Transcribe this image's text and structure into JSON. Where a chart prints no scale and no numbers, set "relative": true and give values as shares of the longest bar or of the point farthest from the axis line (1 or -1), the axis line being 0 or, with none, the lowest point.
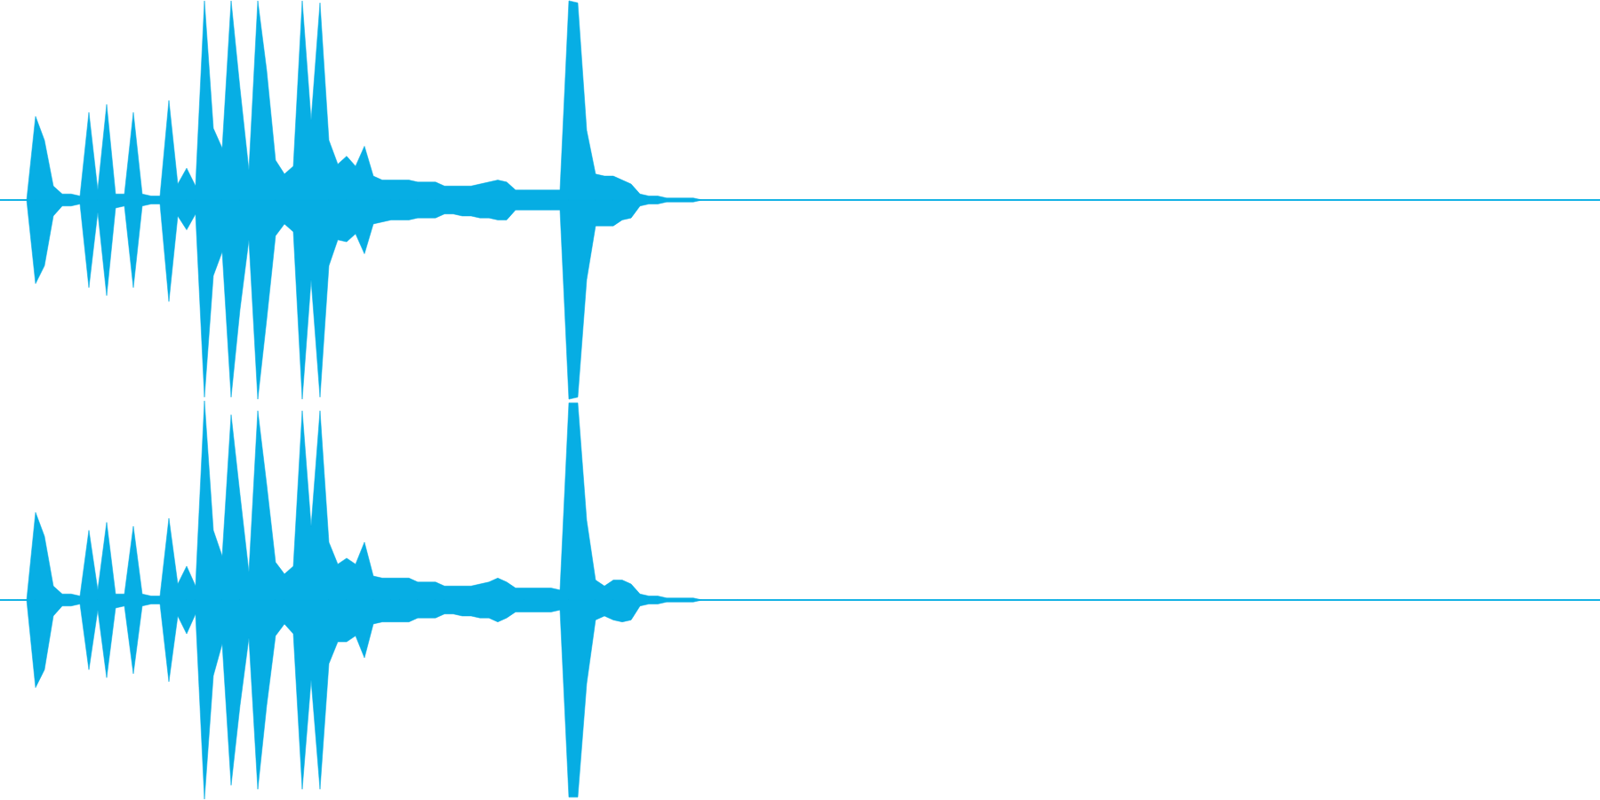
{
  "chart_data": [
    {
      "type": "area",
      "relative": true,
      "categories": [
        null,
        null,
        null,
        null,
        null,
        null,
        null,
        null,
        null,
        null,
        null,
        null,
        null,
        null,
        null,
        null,
        null,
        null,
        null,
        null,
        null,
        null,
        null,
        null,
        null,
        null,
        null,
        null,
        null,
        null,
        null,
        null,
        null,
        null,
        null,
        null,
        null,
        null,
        null,
        null,
        null,
        null,
        null,
        null,
        null,
        null,
        null,
        null,
        null,
        null,
        null,
        null,
        null,
        null,
        null,
        null,
        null,
        null,
        null,
        null,
        null,
        null,
        null,
        null,
        null,
        null,
        null,
        null,
        null,
        null,
        null,
        null,
        null,
        null,
        null,
        null,
        null,
        null,
        null,
        null,
        null,
        null,
        null,
        null,
        null,
        null,
        null,
        null,
        null,
        null,
        null,
        null,
        null,
        null,
        null,
        null,
        null,
        null,
        null,
        null,
        null,
        null,
        null,
        null,
        null,
        null,
        null,
        null,
        null,
        null,
        null,
        null,
        null,
        null,
        null,
        null,
        null,
        null,
        null,
        null,
        null,
        null,
        null,
        null,
        null,
        null,
        null,
        null,
        null,
        null,
        null,
        null,
        null,
        null,
        null,
        null,
        null,
        null,
        null,
        null,
        null,
        null,
        null,
        null,
        null,
        null,
        null,
        null,
        null,
        null,
        null,
        null,
        null,
        null,
        null,
        null,
        null,
        null,
        null,
        null,
        null,
        null,
        null,
        null,
        null,
        null,
        null,
        null,
        null,
        null,
        null,
        null,
        null,
        null,
        null,
        null,
        null,
        null,
        null,
        null,
        null
      ],
      "series": [
        {
          "color": "#07aee4",
          "values": [
            0,
            0,
            0,
            0,
            0.42,
            0.3,
            0.07,
            0.03,
            0.03,
            0.02,
            0.44,
            0.05,
            0.48,
            0.03,
            0.03,
            0.44,
            0.03,
            0.02,
            0.02,
            0.5,
            0.08,
            0.16,
            0.07,
            1,
            0.36,
            0.26,
            1,
            0.56,
            0.15,
            1,
            0.65,
            0.2,
            0.13,
            0.17,
            1,
            0.4,
            0.99,
            0.3,
            0.18,
            0.22,
            0.17,
            0.27,
            0.12,
            0.1,
            0.1,
            0.1,
            0.1,
            0.09,
            0.09,
            0.09,
            0.07,
            0.07,
            0.07,
            0.07,
            0.08,
            0.09,
            0.1,
            0.09,
            0.05,
            0.05,
            0.05,
            0.05,
            0.05,
            0.05,
            1,
            0.99,
            0.35,
            0.13,
            0.12,
            0.12,
            0.1,
            0.08,
            0.03,
            0.02,
            0.02,
            0.01,
            0.01,
            0.01,
            0.01,
            0,
            0,
            0,
            0,
            0,
            0,
            0,
            0,
            0,
            0,
            0,
            0,
            0,
            0,
            0,
            0,
            0,
            0,
            0,
            0,
            0,
            0,
            0,
            0,
            0,
            0,
            0,
            0,
            0,
            0,
            0,
            0,
            0,
            0,
            0,
            0,
            0,
            0,
            0,
            0,
            0,
            0,
            0,
            0,
            0,
            0,
            0,
            0,
            0,
            0,
            0,
            0,
            0,
            0,
            0,
            0,
            0,
            0,
            0,
            0,
            0,
            0,
            0,
            0,
            0,
            0,
            0,
            0,
            0,
            0,
            0,
            0,
            0,
            0,
            0,
            0,
            0,
            0,
            0,
            0,
            0,
            0,
            0,
            0,
            0,
            0,
            0,
            0,
            0,
            0,
            0,
            0,
            0,
            0,
            0,
            0,
            0,
            0,
            0,
            0,
            0,
            0
          ]
        },
        {
          "color": "#06ade3",
          "values": [
            0,
            0,
            0,
            0,
            -0.42,
            -0.33,
            -0.08,
            -0.03,
            -0.03,
            -0.02,
            -0.44,
            -0.06,
            -0.48,
            -0.04,
            -0.03,
            -0.44,
            -0.03,
            -0.02,
            -0.02,
            -0.51,
            -0.08,
            -0.15,
            -0.07,
            -0.99,
            -0.38,
            -0.26,
            -0.99,
            -0.55,
            -0.2,
            -1,
            -0.6,
            -0.18,
            -0.12,
            -0.16,
            -1,
            -0.4,
            -0.99,
            -0.33,
            -0.2,
            -0.21,
            -0.17,
            -0.27,
            -0.12,
            -0.11,
            -0.1,
            -0.1,
            -0.1,
            -0.09,
            -0.09,
            -0.09,
            -0.07,
            -0.07,
            -0.08,
            -0.08,
            -0.09,
            -0.09,
            -0.1,
            -0.1,
            -0.05,
            -0.05,
            -0.05,
            -0.05,
            -0.05,
            -0.05,
            -1,
            -0.99,
            -0.4,
            -0.13,
            -0.13,
            -0.13,
            -0.1,
            -0.09,
            -0.03,
            -0.02,
            -0.02,
            -0.01,
            -0.01,
            -0.01,
            -0.01,
            0,
            0,
            0,
            0,
            0,
            0,
            0,
            0,
            0,
            0,
            0,
            0,
            0,
            0,
            0,
            0,
            0,
            0,
            0,
            0,
            0,
            0,
            0,
            0,
            0,
            0,
            0,
            0,
            0,
            0,
            0,
            0,
            0,
            0,
            0,
            0,
            0,
            0,
            0,
            0,
            0,
            0,
            0,
            0,
            0,
            0,
            0,
            0,
            0,
            0,
            0,
            0,
            0,
            0,
            0,
            0,
            0,
            0,
            0,
            0,
            0,
            0,
            0,
            0,
            0,
            0,
            0,
            0,
            0,
            0,
            0,
            0,
            0,
            0,
            0,
            0,
            0,
            0,
            0,
            0,
            0,
            0,
            0,
            0,
            0,
            0,
            0,
            0,
            0,
            0,
            0,
            0,
            0,
            0,
            0,
            0,
            0,
            0,
            0,
            0,
            0,
            0
          ]
        }
      ]
    },
    {
      "type": "area",
      "relative": true,
      "categories": [
        null,
        null,
        null,
        null,
        null,
        null,
        null,
        null,
        null,
        null,
        null,
        null,
        null,
        null,
        null,
        null,
        null,
        null,
        null,
        null,
        null,
        null,
        null,
        null,
        null,
        null,
        null,
        null,
        null,
        null,
        null,
        null,
        null,
        null,
        null,
        null,
        null,
        null,
        null,
        null,
        null,
        null,
        null,
        null,
        null,
        null,
        null,
        null,
        null,
        null,
        null,
        null,
        null,
        null,
        null,
        null,
        null,
        null,
        null,
        null,
        null,
        null,
        null,
        null,
        null,
        null,
        null,
        null,
        null,
        null,
        null,
        null,
        null,
        null,
        null,
        null,
        null,
        null,
        null,
        null,
        null,
        null,
        null,
        null,
        null,
        null,
        null,
        null,
        null,
        null,
        null,
        null,
        null,
        null,
        null,
        null,
        null,
        null,
        null,
        null,
        null,
        null,
        null,
        null,
        null,
        null,
        null,
        null,
        null,
        null,
        null,
        null,
        null,
        null,
        null,
        null,
        null,
        null,
        null,
        null,
        null,
        null,
        null,
        null,
        null,
        null,
        null,
        null,
        null,
        null,
        null,
        null,
        null,
        null,
        null,
        null,
        null,
        null,
        null,
        null,
        null,
        null,
        null,
        null,
        null,
        null,
        null,
        null,
        null,
        null,
        null,
        null,
        null,
        null,
        null,
        null,
        null,
        null,
        null,
        null,
        null,
        null,
        null,
        null,
        null,
        null,
        null,
        null,
        null,
        null,
        null,
        null,
        null,
        null,
        null,
        null,
        null,
        null,
        null,
        null,
        null
      ],
      "series": [
        {
          "color": "#07aee4",
          "values": [
            0,
            0,
            0,
            0,
            0.44,
            0.32,
            0.07,
            0.03,
            0.03,
            0.02,
            0.35,
            0.05,
            0.39,
            0.03,
            0.03,
            0.37,
            0.03,
            0.02,
            0.02,
            0.41,
            0.08,
            0.17,
            0.07,
            1,
            0.35,
            0.22,
            0.93,
            0.53,
            0.14,
            0.95,
            0.58,
            0.19,
            0.13,
            0.17,
            0.95,
            0.37,
            0.95,
            0.29,
            0.18,
            0.21,
            0.18,
            0.29,
            0.12,
            0.11,
            0.11,
            0.11,
            0.11,
            0.09,
            0.09,
            0.09,
            0.07,
            0.07,
            0.07,
            0.07,
            0.08,
            0.09,
            0.11,
            0.09,
            0.06,
            0.06,
            0.06,
            0.06,
            0.06,
            0.05,
            0.99,
            0.99,
            0.4,
            0.1,
            0.07,
            0.1,
            0.1,
            0.08,
            0.03,
            0.02,
            0.02,
            0.01,
            0.01,
            0.01,
            0.01,
            0,
            0,
            0,
            0,
            0,
            0,
            0,
            0,
            0,
            0,
            0,
            0,
            0,
            0,
            0,
            0,
            0,
            0,
            0,
            0,
            0,
            0,
            0,
            0,
            0,
            0,
            0,
            0,
            0,
            0,
            0,
            0,
            0,
            0,
            0,
            0,
            0,
            0,
            0,
            0,
            0,
            0,
            0,
            0,
            0,
            0,
            0,
            0,
            0,
            0,
            0,
            0,
            0,
            0,
            0,
            0,
            0,
            0,
            0,
            0,
            0,
            0,
            0,
            0,
            0,
            0,
            0,
            0,
            0,
            0,
            0,
            0,
            0,
            0,
            0,
            0,
            0,
            0,
            0,
            0,
            0,
            0,
            0,
            0,
            0,
            0,
            0,
            0,
            0,
            0,
            0,
            0,
            0,
            0,
            0,
            0,
            0,
            0,
            0,
            0,
            0,
            0
          ]
        },
        {
          "color": "#06ade3",
          "values": [
            0,
            0,
            0,
            0,
            -0.44,
            -0.35,
            -0.08,
            -0.03,
            -0.03,
            -0.02,
            -0.35,
            -0.05,
            -0.39,
            -0.04,
            -0.03,
            -0.37,
            -0.03,
            -0.02,
            -0.02,
            -0.41,
            -0.08,
            -0.17,
            -0.07,
            -1,
            -0.38,
            -0.22,
            -0.93,
            -0.53,
            -0.19,
            -0.95,
            -0.53,
            -0.18,
            -0.12,
            -0.17,
            -0.95,
            -0.4,
            -0.95,
            -0.32,
            -0.21,
            -0.21,
            -0.18,
            -0.29,
            -0.12,
            -0.11,
            -0.11,
            -0.11,
            -0.11,
            -0.09,
            -0.09,
            -0.09,
            -0.07,
            -0.07,
            -0.08,
            -0.08,
            -0.09,
            -0.09,
            -0.11,
            -0.09,
            -0.06,
            -0.06,
            -0.06,
            -0.06,
            -0.06,
            -0.05,
            -0.99,
            -0.99,
            -0.42,
            -0.1,
            -0.08,
            -0.1,
            -0.11,
            -0.1,
            -0.03,
            -0.02,
            -0.02,
            -0.01,
            -0.01,
            -0.01,
            -0.01,
            0,
            0,
            0,
            0,
            0,
            0,
            0,
            0,
            0,
            0,
            0,
            0,
            0,
            0,
            0,
            0,
            0,
            0,
            0,
            0,
            0,
            0,
            0,
            0,
            0,
            0,
            0,
            0,
            0,
            0,
            0,
            0,
            0,
            0,
            0,
            0,
            0,
            0,
            0,
            0,
            0,
            0,
            0,
            0,
            0,
            0,
            0,
            0,
            0,
            0,
            0,
            0,
            0,
            0,
            0,
            0,
            0,
            0,
            0,
            0,
            0,
            0,
            0,
            0,
            0,
            0,
            0,
            0,
            0,
            0,
            0,
            0,
            0,
            0,
            0,
            0,
            0,
            0,
            0,
            0,
            0,
            0,
            0,
            0,
            0,
            0,
            0,
            0,
            0,
            0,
            0,
            0,
            0,
            0,
            0,
            0,
            0,
            0,
            0,
            0,
            0,
            0
          ]
        }
      ]
    }
  ]
}
